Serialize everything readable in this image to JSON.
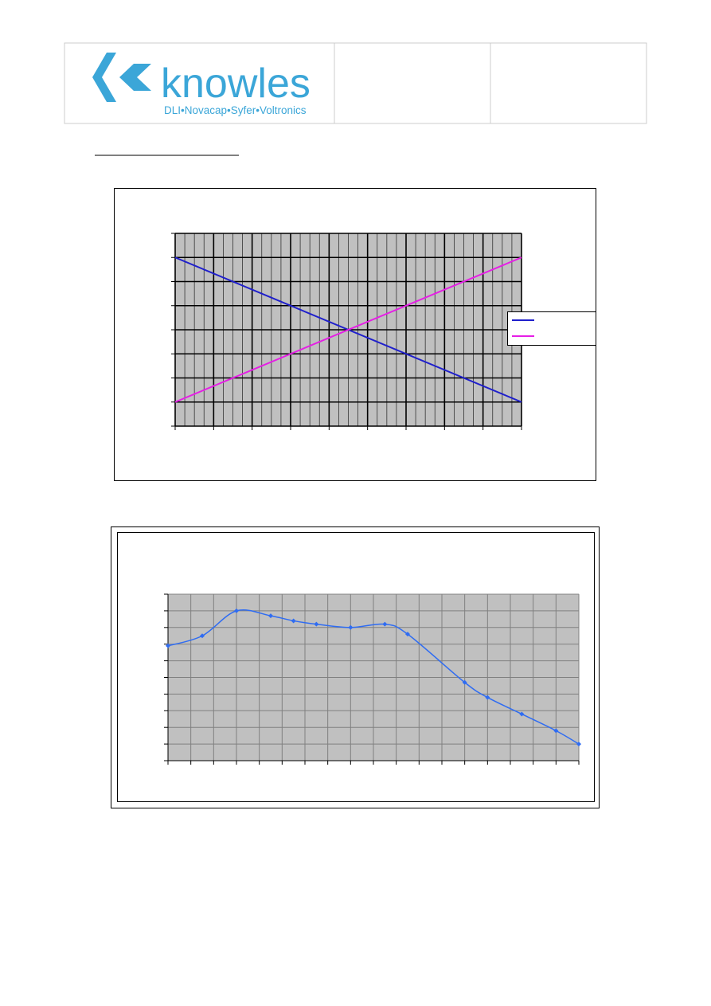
{
  "header": {
    "logo_text": "knowles",
    "logo_tagline": "DLI•Novacap•Syfer•Voltronics"
  },
  "chart_data": [
    {
      "type": "line",
      "grid": true,
      "legend": "right",
      "xlim": [
        0,
        9
      ],
      "xticks": [
        0,
        1,
        2,
        3,
        4,
        5,
        6,
        7,
        8,
        9
      ],
      "ylim": [
        0,
        8
      ],
      "yticks": [
        0,
        1,
        2,
        3,
        4,
        5,
        6,
        7,
        8
      ],
      "x": [
        0,
        9
      ],
      "series": [
        {
          "color": "#1f1fcc",
          "values": [
            7,
            1
          ]
        },
        {
          "color": "#e61ee6",
          "values": [
            1,
            7
          ]
        }
      ]
    },
    {
      "type": "line",
      "grid": true,
      "smooth": true,
      "markers": true,
      "xlim": [
        0,
        18
      ],
      "xticks": [
        0,
        1,
        2,
        3,
        4,
        5,
        6,
        7,
        8,
        9,
        10,
        11,
        12,
        13,
        14,
        15,
        16,
        17,
        18
      ],
      "ylim": [
        0,
        10
      ],
      "yticks": [
        0,
        1,
        2,
        3,
        4,
        5,
        6,
        7,
        8,
        9,
        10
      ],
      "x": [
        0,
        1.5,
        3,
        4.5,
        5.5,
        6.5,
        8,
        9.5,
        10.5,
        13,
        14,
        15.5,
        17,
        18
      ],
      "series": [
        {
          "color": "#2f6cf2",
          "values": [
            6.9,
            7.5,
            9.0,
            8.7,
            8.4,
            8.2,
            8.0,
            8.2,
            7.6,
            4.7,
            3.8,
            2.8,
            1.8,
            1.0
          ]
        }
      ]
    }
  ]
}
